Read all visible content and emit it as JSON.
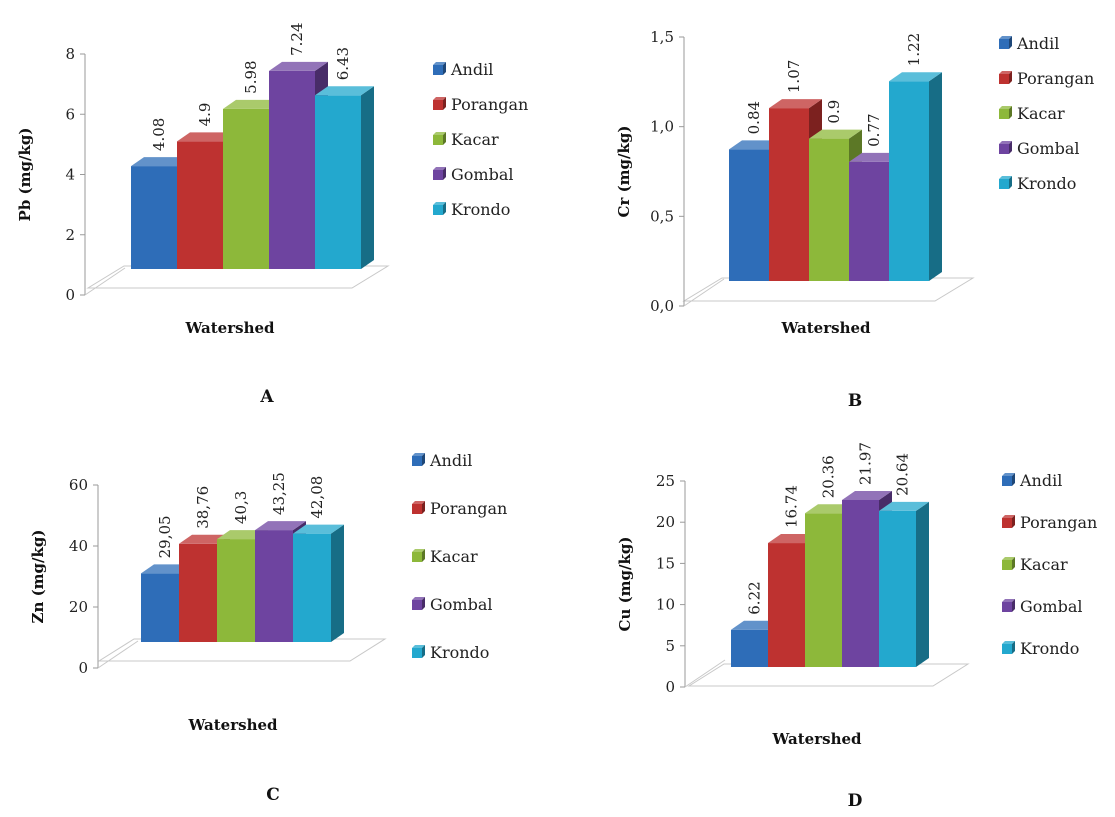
{
  "colors": {
    "Andil": "#2E6DB8",
    "Porangan": "#BE3230",
    "Kacar": "#8DB83A",
    "Gombal": "#6E44A0",
    "Krondo": "#23A8CE"
  },
  "chart_data": [
    {
      "type": "bar",
      "panel": "A",
      "categories": [
        "Andil",
        "Porangan",
        "Kacar",
        "Gombal",
        "Krondo"
      ],
      "values": [
        4.08,
        4.9,
        5.98,
        7.24,
        6.43
      ],
      "value_labels": [
        "4.08",
        "4.9",
        "5.98",
        "7.24",
        "6.43"
      ],
      "xlabel": "Watershed",
      "ylabel": "Pb (mg/kg)",
      "ylim": [
        0,
        8
      ],
      "ticks": [
        0,
        2,
        4,
        6,
        8
      ],
      "tick_labels": [
        "0",
        "2",
        "4",
        "6",
        "8"
      ],
      "legend": [
        "Andil",
        "Porangan",
        "Kacar",
        "Gombal",
        "Krondo"
      ],
      "legend_position": "right",
      "grid": false
    },
    {
      "type": "bar",
      "panel": "B",
      "categories": [
        "Andil",
        "Porangan",
        "Kacar",
        "Gombal",
        "Krondo"
      ],
      "values": [
        0.84,
        1.07,
        0.9,
        0.77,
        1.22
      ],
      "value_labels": [
        "0.84",
        "1.07",
        "0.9",
        "0.77",
        "1.22"
      ],
      "xlabel": "Watershed",
      "ylabel": "Cr (mg/kg)",
      "ylim": [
        0,
        1.5
      ],
      "ticks": [
        0,
        0.5,
        1.0,
        1.5
      ],
      "tick_labels": [
        "0,0",
        "0,5",
        "1,0",
        "1,5"
      ],
      "legend": [
        "Andil",
        "Porangan",
        "Kacar",
        "Gombal",
        "Krondo"
      ],
      "legend_position": "right",
      "grid": false
    },
    {
      "type": "bar",
      "panel": "C",
      "categories": [
        "Andil",
        "Porangan",
        "Kacar",
        "Gombal",
        "Krondo"
      ],
      "values": [
        29.05,
        38.76,
        40.3,
        43.25,
        42.08
      ],
      "value_labels": [
        "29,05",
        "38,76",
        "40,3",
        "43,25",
        "42,08"
      ],
      "xlabel": "Watershed",
      "ylabel": "Zn (mg/kg)",
      "ylim": [
        0,
        60
      ],
      "ticks": [
        0,
        20,
        40,
        60
      ],
      "tick_labels": [
        "0",
        "20",
        "40",
        "60"
      ],
      "legend": [
        "Andil",
        "Porangan",
        "Kacar",
        "Gombal",
        "Krondo"
      ],
      "legend_position": "right",
      "grid": false
    },
    {
      "type": "bar",
      "panel": "D",
      "categories": [
        "Andil",
        "Porangan",
        "Kacar",
        "Gombal",
        "Krondo"
      ],
      "values": [
        6.22,
        16.74,
        20.36,
        21.97,
        20.64
      ],
      "value_labels": [
        "6.22",
        "16.74",
        "20.36",
        "21.97",
        "20.64"
      ],
      "xlabel": "Watershed",
      "ylabel": "Cu (mg/kg)",
      "ylim": [
        0,
        25
      ],
      "ticks": [
        0,
        5,
        10,
        15,
        20,
        25
      ],
      "tick_labels": [
        "0",
        "5",
        "10",
        "15",
        "20",
        "25"
      ],
      "legend": [
        "Andil",
        "Porangan",
        "Kacar",
        "Gombal",
        "Krondo"
      ],
      "legend_position": "right",
      "grid": false
    }
  ]
}
